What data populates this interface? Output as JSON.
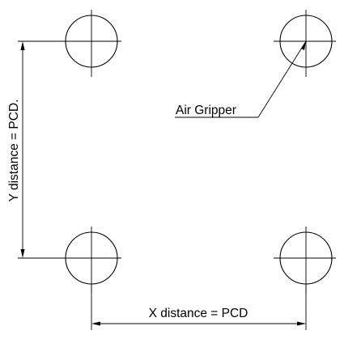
{
  "labels": {
    "air_gripper": "Air Gripper",
    "x_distance": "X distance = PCD",
    "y_distance": "Y distance = PCD."
  },
  "colors": {
    "line": "#000000",
    "background": "#ffffff"
  }
}
